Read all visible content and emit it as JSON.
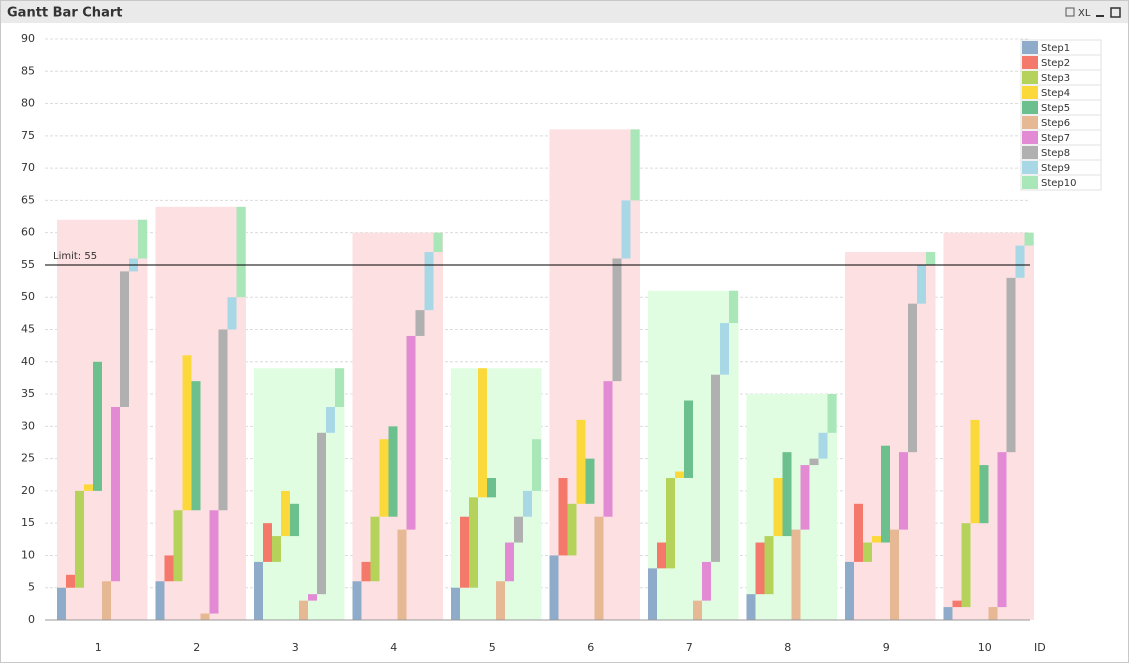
{
  "window_title": "Gantt Bar Chart",
  "toolbar": {
    "xl": "XL"
  },
  "chart_data": {
    "type": "gantt",
    "categories": [
      "1",
      "2",
      "3",
      "4",
      "5",
      "6",
      "7",
      "8",
      "9",
      "10"
    ],
    "xlabel": "ID",
    "ylim": [
      0,
      90
    ],
    "yticks": [
      0,
      5,
      10,
      15,
      20,
      25,
      30,
      35,
      40,
      45,
      50,
      55,
      60,
      65,
      70,
      75,
      80,
      85,
      90
    ],
    "grid": true,
    "legend": "top-right",
    "limit": 55,
    "limit_label": "Limit: 55",
    "totals": [
      62,
      64,
      39,
      60,
      39,
      76,
      51,
      35,
      57,
      60
    ],
    "over_color": "#fde0e2",
    "under_color": "#e0fde2",
    "series": [
      {
        "name": "Step1",
        "color": "#8eabc9",
        "starts": [
          0,
          0,
          0,
          0,
          0,
          0,
          0,
          0,
          0,
          0
        ],
        "values": [
          5,
          6,
          9,
          6,
          5,
          10,
          8,
          4,
          9,
          2
        ]
      },
      {
        "name": "Step2",
        "color": "#f4796a",
        "starts": [
          5,
          6,
          9,
          6,
          5,
          10,
          8,
          4,
          9,
          2
        ],
        "values": [
          7,
          10,
          15,
          9,
          16,
          22,
          12,
          12,
          18,
          3
        ]
      },
      {
        "name": "Step3",
        "color": "#b5d35b",
        "starts": [
          5,
          6,
          9,
          6,
          5,
          10,
          8,
          4,
          9,
          2
        ],
        "values": [
          20,
          17,
          13,
          16,
          19,
          18,
          22,
          13,
          12,
          15
        ]
      },
      {
        "name": "Step4",
        "color": "#fcd93a",
        "starts": [
          20,
          17,
          13,
          16,
          19,
          18,
          22,
          13,
          12,
          15
        ],
        "values": [
          21,
          41,
          20,
          28,
          39,
          31,
          23,
          22,
          13,
          31
        ]
      },
      {
        "name": "Step5",
        "color": "#6cc08e",
        "starts": [
          20,
          17,
          13,
          16,
          19,
          18,
          22,
          13,
          12,
          15
        ],
        "values": [
          40,
          37,
          18,
          30,
          22,
          25,
          34,
          26,
          27,
          24
        ]
      },
      {
        "name": "Step6",
        "color": "#e6b893",
        "starts": [
          0,
          0,
          0,
          0,
          0,
          0,
          0,
          0,
          0,
          0
        ],
        "values": [
          6,
          1,
          3,
          14,
          6,
          16,
          3,
          14,
          14,
          2
        ]
      },
      {
        "name": "Step7",
        "color": "#e38ad4",
        "starts": [
          6,
          1,
          3,
          14,
          6,
          16,
          3,
          14,
          14,
          2
        ],
        "values": [
          33,
          17,
          4,
          44,
          12,
          37,
          9,
          24,
          26,
          26
        ]
      },
      {
        "name": "Step8",
        "color": "#b0b0b0",
        "starts": [
          33,
          17,
          4,
          44,
          12,
          37,
          9,
          24,
          26,
          26
        ],
        "values": [
          54,
          45,
          29,
          48,
          16,
          56,
          38,
          25,
          49,
          53
        ]
      },
      {
        "name": "Step9",
        "color": "#a8d8e6",
        "starts": [
          54,
          45,
          29,
          48,
          16,
          56,
          38,
          25,
          49,
          53
        ],
        "values": [
          56,
          50,
          33,
          57,
          20,
          65,
          46,
          29,
          55,
          58
        ]
      },
      {
        "name": "Step10",
        "color": "#a9e6b8",
        "starts": [
          56,
          50,
          33,
          57,
          20,
          65,
          46,
          29,
          55,
          58
        ],
        "values": [
          62,
          64,
          39,
          60,
          28,
          76,
          51,
          35,
          57,
          60
        ]
      }
    ]
  }
}
